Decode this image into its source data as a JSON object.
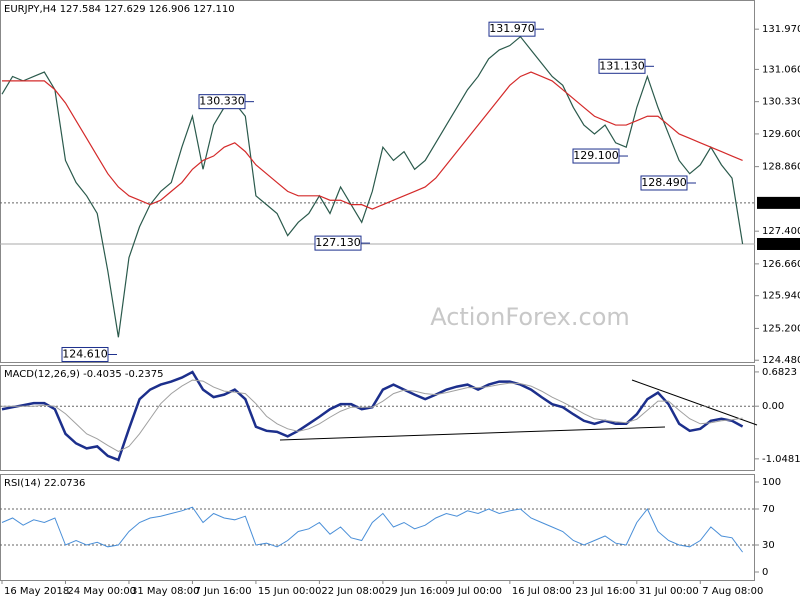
{
  "watermark": "ActionForex.com",
  "chart_data": [
    {
      "type": "line",
      "title": "EURJPY,H4  127.584 127.629 126.906 127.110",
      "categories": [
        "16 May 2018",
        null,
        null,
        null,
        null,
        null,
        "24 May 00:00",
        null,
        null,
        null,
        null,
        null,
        "31 May 08:00",
        null,
        null,
        null,
        null,
        null,
        "7 Jun 16:00",
        null,
        null,
        null,
        null,
        null,
        "15 Jun 00:00",
        null,
        null,
        null,
        null,
        null,
        "22 Jun 08:00",
        null,
        null,
        null,
        null,
        null,
        "29 Jun 16:00",
        null,
        null,
        null,
        null,
        null,
        "9 Jul 00:00",
        null,
        null,
        null,
        null,
        null,
        "16 Jul 08:00",
        null,
        null,
        null,
        null,
        null,
        "23 Jul 16:00",
        null,
        null,
        null,
        null,
        null,
        "31 Jul 00:00",
        null,
        null,
        null,
        null,
        null,
        "7 Aug 08:00",
        null,
        null,
        null,
        null
      ],
      "series": [
        {
          "color": "#2b5a4c",
          "values": [
            130.5,
            130.9,
            130.8,
            130.9,
            131.0,
            130.6,
            129.0,
            128.5,
            128.2,
            127.8,
            126.5,
            125.0,
            126.8,
            127.5,
            128.0,
            128.3,
            128.5,
            129.3,
            130.0,
            128.8,
            129.8,
            130.2,
            130.3,
            130.0,
            128.2,
            128.0,
            127.8,
            127.3,
            127.6,
            127.8,
            128.2,
            127.8,
            128.4,
            128.0,
            127.6,
            128.3,
            129.3,
            129.0,
            129.2,
            128.8,
            129.0,
            129.4,
            129.8,
            130.2,
            130.6,
            130.9,
            131.3,
            131.5,
            131.6,
            131.8,
            131.5,
            131.2,
            130.9,
            130.7,
            130.2,
            129.8,
            129.6,
            129.8,
            129.4,
            129.3,
            130.2,
            130.9,
            130.2,
            129.6,
            129.0,
            128.7,
            128.9,
            129.3,
            128.9,
            128.6,
            127.11
          ]
        },
        {
          "color": "#d42a2a",
          "values": [
            130.8,
            130.8,
            130.8,
            130.8,
            130.8,
            130.6,
            130.3,
            129.9,
            129.5,
            129.1,
            128.7,
            128.4,
            128.2,
            128.1,
            128.0,
            128.1,
            128.3,
            128.5,
            128.8,
            129.0,
            129.1,
            129.3,
            129.4,
            129.2,
            128.9,
            128.7,
            128.5,
            128.3,
            128.2,
            128.2,
            128.2,
            128.1,
            128.1,
            128.0,
            128.0,
            127.9,
            128.0,
            128.1,
            128.2,
            128.3,
            128.4,
            128.6,
            128.9,
            129.2,
            129.5,
            129.8,
            130.1,
            130.4,
            130.7,
            130.9,
            131.0,
            130.9,
            130.8,
            130.6,
            130.4,
            130.2,
            130.0,
            129.9,
            129.8,
            129.8,
            129.9,
            130.0,
            130.0,
            129.8,
            129.6,
            129.5,
            129.4,
            129.3,
            129.2,
            129.1,
            129.0
          ]
        }
      ],
      "ylim": [
        124.44,
        132.63
      ],
      "yticks": [
        {
          "value": 131.97,
          "label": "131.970"
        },
        {
          "value": 131.06,
          "label": "131.060"
        },
        {
          "value": 130.33,
          "label": "130.330"
        },
        {
          "value": 129.6,
          "label": "129.600"
        },
        {
          "value": 128.86,
          "label": "128.860"
        },
        {
          "value": 127.4,
          "label": "127.400"
        },
        {
          "value": 126.66,
          "label": "126.660"
        },
        {
          "value": 125.94,
          "label": "125.940"
        },
        {
          "value": 125.2,
          "label": "125.200"
        },
        {
          "value": 124.48,
          "label": "124.480"
        }
      ],
      "levels": [
        {
          "value": 128.04,
          "label": "128.040",
          "style": "dotted"
        },
        {
          "value": 127.11,
          "label": "127.110",
          "style": "solid"
        }
      ],
      "annotations": [
        {
          "value": 131.97,
          "label": "131.970"
        },
        {
          "value": 131.13,
          "label": "131.130"
        },
        {
          "value": 130.33,
          "label": "130.330"
        },
        {
          "value": 129.1,
          "label": "129.100"
        },
        {
          "value": 128.49,
          "label": "128.490"
        },
        {
          "value": 127.13,
          "label": "127.130"
        },
        {
          "value": 124.61,
          "label": "124.610"
        }
      ]
    },
    {
      "type": "line",
      "title": "MACD(12,26,9) -0.4035 -0.2375",
      "series": [
        {
          "color": "#1c2f8c",
          "values": [
            -0.06,
            -0.02,
            0.02,
            0.06,
            0.06,
            -0.06,
            -0.55,
            -0.74,
            -0.84,
            -0.8,
            -0.99,
            -1.07,
            -0.45,
            0.14,
            0.33,
            0.43,
            0.49,
            0.57,
            0.68,
            0.33,
            0.18,
            0.23,
            0.33,
            0.14,
            -0.41,
            -0.49,
            -0.51,
            -0.6,
            -0.49,
            -0.35,
            -0.21,
            -0.06,
            0.04,
            0.04,
            -0.06,
            -0.02,
            0.33,
            0.43,
            0.33,
            0.23,
            0.14,
            0.23,
            0.33,
            0.39,
            0.43,
            0.33,
            0.43,
            0.49,
            0.49,
            0.43,
            0.33,
            0.18,
            0.04,
            -0.02,
            -0.16,
            -0.29,
            -0.35,
            -0.29,
            -0.35,
            -0.35,
            -0.16,
            0.14,
            0.27,
            0.04,
            -0.35,
            -0.49,
            -0.45,
            -0.29,
            -0.25,
            -0.29,
            -0.4035
          ]
        },
        {
          "color": "#a0a0a0",
          "values": [
            0,
            0,
            0,
            0,
            0.02,
            0,
            -0.15,
            -0.35,
            -0.55,
            -0.65,
            -0.78,
            -0.9,
            -0.8,
            -0.55,
            -0.25,
            0.05,
            0.25,
            0.4,
            0.52,
            0.5,
            0.38,
            0.3,
            0.28,
            0.25,
            0.05,
            -0.2,
            -0.35,
            -0.45,
            -0.5,
            -0.45,
            -0.35,
            -0.22,
            -0.1,
            -0.02,
            -0.02,
            -0.02,
            0.1,
            0.25,
            0.32,
            0.3,
            0.25,
            0.23,
            0.27,
            0.32,
            0.37,
            0.37,
            0.39,
            0.43,
            0.46,
            0.45,
            0.4,
            0.3,
            0.18,
            0.08,
            -0.03,
            -0.15,
            -0.25,
            -0.28,
            -0.31,
            -0.33,
            -0.26,
            -0.08,
            0.1,
            0.1,
            -0.08,
            -0.25,
            -0.35,
            -0.33,
            -0.29,
            -0.27,
            -0.2375
          ]
        }
      ],
      "ylim": [
        -1.27,
        0.82
      ],
      "yticks": [
        0.6823,
        {
          "value": 0,
          "label": "0.00"
        },
        -1.0481
      ],
      "levels": [
        {
          "value": 0,
          "style": "dotted"
        }
      ]
    },
    {
      "type": "line",
      "title": "RSI(14) 22.0736",
      "series": [
        {
          "color": "#4a8fd8",
          "values": [
            55,
            60,
            52,
            58,
            55,
            60,
            30,
            35,
            30,
            33,
            28,
            30,
            45,
            55,
            60,
            62,
            65,
            68,
            72,
            55,
            65,
            60,
            58,
            62,
            30,
            32,
            28,
            35,
            45,
            48,
            55,
            42,
            50,
            38,
            35,
            55,
            65,
            50,
            55,
            48,
            52,
            60,
            65,
            62,
            68,
            65,
            70,
            65,
            68,
            70,
            60,
            55,
            50,
            45,
            35,
            30,
            35,
            40,
            32,
            30,
            55,
            70,
            45,
            35,
            30,
            28,
            35,
            50,
            40,
            38,
            22.0736
          ]
        }
      ],
      "ylim": [
        -8.9,
        108.9
      ],
      "yticks": [
        100,
        70,
        30,
        0
      ],
      "levels": [
        {
          "value": 70,
          "style": "dotted"
        },
        {
          "value": 30,
          "style": "dotted"
        }
      ]
    }
  ]
}
